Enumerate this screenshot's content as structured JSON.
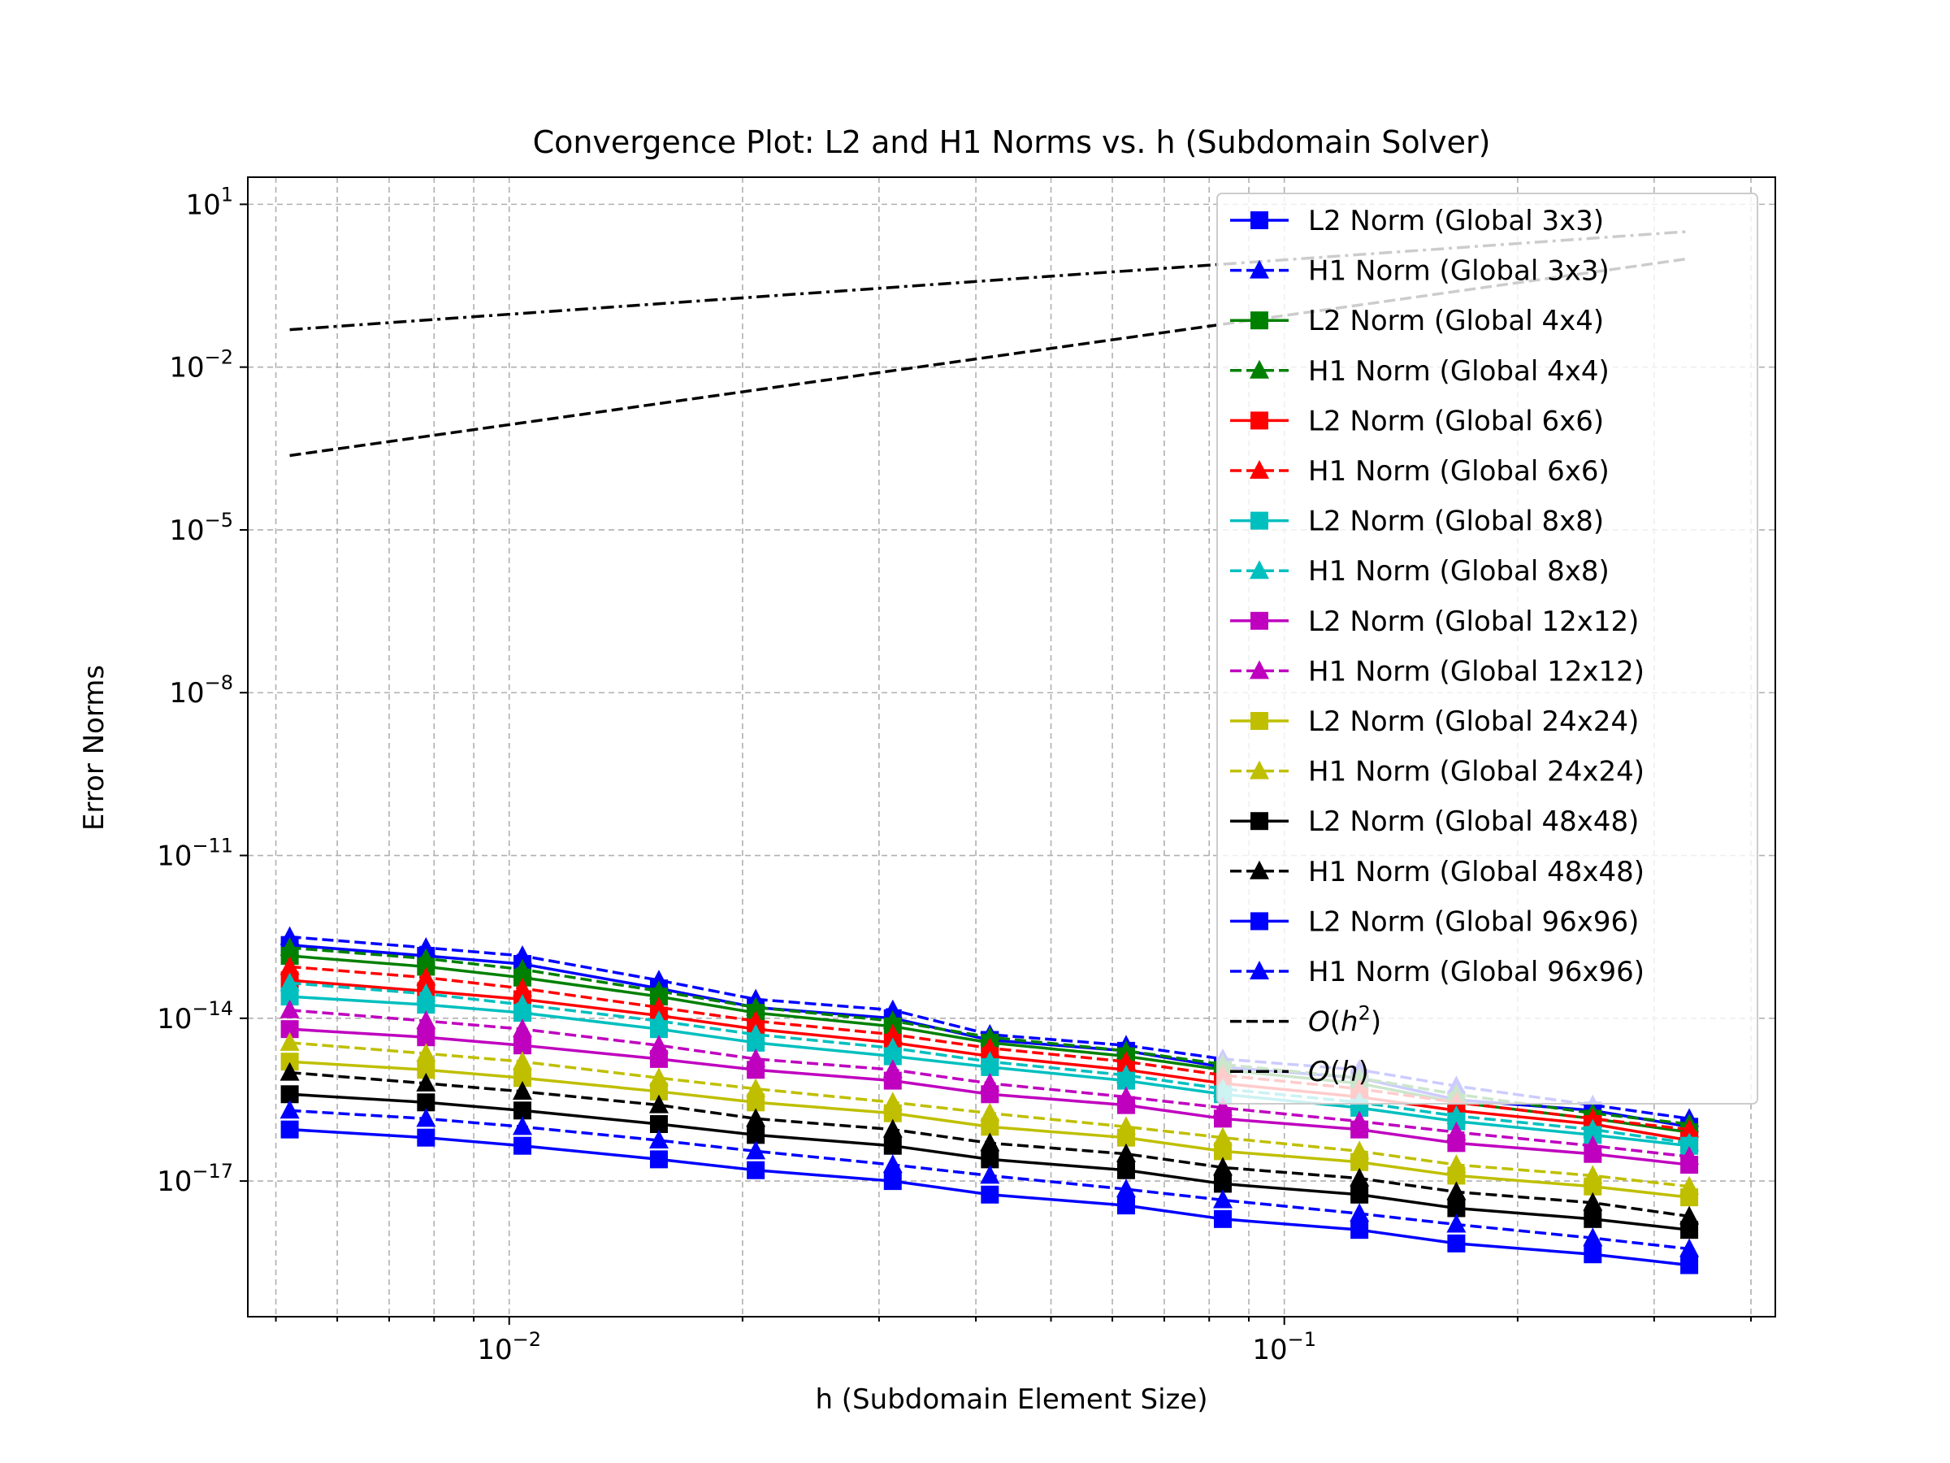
{
  "chart_data": {
    "type": "line",
    "title": "Convergence Plot: L2 and H1 Norms vs. h (Subdomain Solver)",
    "xlabel": "h (Subdomain Element Size)",
    "ylabel": "Error Norms",
    "x_scale": "log",
    "y_scale": "log",
    "xlim": [
      0.0046,
      0.43
    ],
    "ylim_exp": [
      -19.5,
      1.5
    ],
    "grid": "both-major-minor-dashed",
    "legend_position": "upper-right",
    "x_ticks": [
      {
        "value": 0.01,
        "base": "10",
        "exp": "−2"
      },
      {
        "value": 0.1,
        "base": "10",
        "exp": "−1"
      }
    ],
    "y_ticks": [
      {
        "exp_value": 1,
        "base": "10",
        "exp": "1"
      },
      {
        "exp_value": -2,
        "base": "10",
        "exp": "−2"
      },
      {
        "exp_value": -5,
        "base": "10",
        "exp": "−5"
      },
      {
        "exp_value": -8,
        "base": "10",
        "exp": "−8"
      },
      {
        "exp_value": -11,
        "base": "10",
        "exp": "−11"
      },
      {
        "exp_value": -14,
        "base": "10",
        "exp": "−14"
      },
      {
        "exp_value": -17,
        "base": "10",
        "exp": "−17"
      }
    ],
    "x": [
      0.00521,
      0.00781,
      0.0104,
      0.0156,
      0.0208,
      0.03125,
      0.0417,
      0.0625,
      0.0833,
      0.125,
      0.1667,
      0.25,
      0.333
    ],
    "reference_lines": [
      {
        "label": "O(h²)",
        "style": "dashed",
        "color": "#000000",
        "x": [
          0.00521,
          0.333
        ],
        "y_exp": [
          -3.63,
          0.0
        ]
      },
      {
        "label": "O(h)",
        "style": "dashdot",
        "color": "#000000",
        "x": [
          0.00521,
          0.333
        ],
        "y_exp": [
          -1.31,
          0.5
        ]
      }
    ],
    "series": [
      {
        "name": "L2 Norm (Global 3x3)",
        "color": "#0000ff",
        "line": "solid",
        "marker": "square",
        "y_exp": [
          -12.65,
          -12.85,
          -13.0,
          -13.45,
          -13.8,
          -14.0,
          -14.4,
          -14.6,
          -14.9,
          -15.1,
          -15.5,
          -15.7,
          -16.0
        ]
      },
      {
        "name": "H1 Norm (Global 3x3)",
        "color": "#0000ff",
        "line": "dashed",
        "marker": "triangle",
        "y_exp": [
          -12.5,
          -12.7,
          -12.85,
          -13.3,
          -13.65,
          -13.85,
          -14.3,
          -14.5,
          -14.75,
          -14.95,
          -15.25,
          -15.6,
          -15.85
        ]
      },
      {
        "name": "L2 Norm (Global 4x4)",
        "color": "#008000",
        "line": "solid",
        "marker": "square",
        "y_exp": [
          -12.85,
          -13.05,
          -13.25,
          -13.6,
          -13.9,
          -14.15,
          -14.45,
          -14.7,
          -14.95,
          -15.2,
          -15.55,
          -15.85,
          -16.1
        ]
      },
      {
        "name": "H1 Norm (Global 4x4)",
        "color": "#008000",
        "line": "dashed",
        "marker": "triangle",
        "y_exp": [
          -12.7,
          -12.9,
          -13.1,
          -13.5,
          -13.8,
          -14.05,
          -14.35,
          -14.6,
          -14.85,
          -15.1,
          -15.4,
          -15.75,
          -15.95
        ]
      },
      {
        "name": "L2 Norm (Global 6x6)",
        "color": "#ff0000",
        "line": "solid",
        "marker": "square",
        "y_exp": [
          -13.3,
          -13.5,
          -13.65,
          -13.95,
          -14.2,
          -14.45,
          -14.7,
          -14.95,
          -15.2,
          -15.45,
          -15.7,
          -15.95,
          -16.25
        ]
      },
      {
        "name": "H1 Norm (Global 6x6)",
        "color": "#ff0000",
        "line": "dashed",
        "marker": "triangle",
        "y_exp": [
          -13.05,
          -13.25,
          -13.45,
          -13.8,
          -14.05,
          -14.3,
          -14.55,
          -14.8,
          -15.05,
          -15.3,
          -15.55,
          -15.85,
          -16.05
        ]
      },
      {
        "name": "L2 Norm (Global 8x8)",
        "color": "#00bfbf",
        "line": "solid",
        "marker": "square",
        "y_exp": [
          -13.6,
          -13.75,
          -13.9,
          -14.2,
          -14.45,
          -14.7,
          -14.9,
          -15.15,
          -15.4,
          -15.65,
          -15.9,
          -16.15,
          -16.35
        ]
      },
      {
        "name": "H1 Norm (Global 8x8)",
        "color": "#00bfbf",
        "line": "dashed",
        "marker": "triangle",
        "y_exp": [
          -13.35,
          -13.55,
          -13.75,
          -14.05,
          -14.3,
          -14.55,
          -14.8,
          -15.05,
          -15.3,
          -15.55,
          -15.8,
          -16.05,
          -16.3
        ]
      },
      {
        "name": "L2 Norm (Global 12x12)",
        "color": "#bf00bf",
        "line": "solid",
        "marker": "square",
        "y_exp": [
          -14.2,
          -14.35,
          -14.5,
          -14.75,
          -14.95,
          -15.15,
          -15.4,
          -15.6,
          -15.85,
          -16.05,
          -16.3,
          -16.5,
          -16.7
        ]
      },
      {
        "name": "H1 Norm (Global 12x12)",
        "color": "#bf00bf",
        "line": "dashed",
        "marker": "triangle",
        "y_exp": [
          -13.85,
          -14.05,
          -14.2,
          -14.5,
          -14.75,
          -14.95,
          -15.2,
          -15.45,
          -15.65,
          -15.9,
          -16.1,
          -16.35,
          -16.55
        ]
      },
      {
        "name": "L2 Norm (Global 24x24)",
        "color": "#bfbf00",
        "line": "solid",
        "marker": "square",
        "y_exp": [
          -14.8,
          -14.95,
          -15.1,
          -15.35,
          -15.55,
          -15.75,
          -16.0,
          -16.2,
          -16.45,
          -16.65,
          -16.9,
          -17.1,
          -17.3
        ]
      },
      {
        "name": "H1 Norm (Global 24x24)",
        "color": "#bfbf00",
        "line": "dashed",
        "marker": "triangle",
        "y_exp": [
          -14.45,
          -14.65,
          -14.8,
          -15.1,
          -15.3,
          -15.55,
          -15.75,
          -16.0,
          -16.2,
          -16.45,
          -16.7,
          -16.9,
          -17.1
        ]
      },
      {
        "name": "L2 Norm (Global 48x48)",
        "color": "#000000",
        "line": "solid",
        "marker": "square",
        "y_exp": [
          -15.4,
          -15.55,
          -15.7,
          -15.95,
          -16.15,
          -16.35,
          -16.6,
          -16.8,
          -17.05,
          -17.25,
          -17.5,
          -17.7,
          -17.9
        ]
      },
      {
        "name": "H1 Norm (Global 48x48)",
        "color": "#000000",
        "line": "dashed",
        "marker": "triangle",
        "y_exp": [
          -15.0,
          -15.2,
          -15.35,
          -15.6,
          -15.85,
          -16.05,
          -16.3,
          -16.5,
          -16.75,
          -16.95,
          -17.2,
          -17.4,
          -17.65
        ]
      },
      {
        "name": "L2 Norm (Global 96x96)",
        "color": "#0000ff",
        "line": "solid",
        "marker": "square",
        "y_exp": [
          -16.05,
          -16.2,
          -16.35,
          -16.6,
          -16.8,
          -17.0,
          -17.25,
          -17.45,
          -17.7,
          -17.9,
          -18.15,
          -18.35,
          -18.55
        ]
      },
      {
        "name": "H1 Norm (Global 96x96)",
        "color": "#0000ff",
        "line": "dashed",
        "marker": "triangle",
        "y_exp": [
          -15.7,
          -15.85,
          -16.0,
          -16.25,
          -16.45,
          -16.7,
          -16.9,
          -17.15,
          -17.35,
          -17.6,
          -17.8,
          -18.05,
          -18.25
        ]
      }
    ],
    "legend": [
      {
        "label": "L2 Norm (Global 3x3)",
        "color": "#0000ff",
        "line": "solid",
        "marker": "square"
      },
      {
        "label": "H1 Norm (Global 3x3)",
        "color": "#0000ff",
        "line": "dashed",
        "marker": "triangle"
      },
      {
        "label": "L2 Norm (Global 4x4)",
        "color": "#008000",
        "line": "solid",
        "marker": "square"
      },
      {
        "label": "H1 Norm (Global 4x4)",
        "color": "#008000",
        "line": "dashed",
        "marker": "triangle"
      },
      {
        "label": "L2 Norm (Global 6x6)",
        "color": "#ff0000",
        "line": "solid",
        "marker": "square"
      },
      {
        "label": "H1 Norm (Global 6x6)",
        "color": "#ff0000",
        "line": "dashed",
        "marker": "triangle"
      },
      {
        "label": "L2 Norm (Global 8x8)",
        "color": "#00bfbf",
        "line": "solid",
        "marker": "square"
      },
      {
        "label": "H1 Norm (Global 8x8)",
        "color": "#00bfbf",
        "line": "dashed",
        "marker": "triangle"
      },
      {
        "label": "L2 Norm (Global 12x12)",
        "color": "#bf00bf",
        "line": "solid",
        "marker": "square"
      },
      {
        "label": "H1 Norm (Global 12x12)",
        "color": "#bf00bf",
        "line": "dashed",
        "marker": "triangle"
      },
      {
        "label": "L2 Norm (Global 24x24)",
        "color": "#bfbf00",
        "line": "solid",
        "marker": "square"
      },
      {
        "label": "H1 Norm (Global 24x24)",
        "color": "#bfbf00",
        "line": "dashed",
        "marker": "triangle"
      },
      {
        "label": "L2 Norm (Global 48x48)",
        "color": "#000000",
        "line": "solid",
        "marker": "square"
      },
      {
        "label": "H1 Norm (Global 48x48)",
        "color": "#000000",
        "line": "dashed",
        "marker": "triangle"
      },
      {
        "label": "L2 Norm (Global 96x96)",
        "color": "#0000ff",
        "line": "solid",
        "marker": "square"
      },
      {
        "label": "H1 Norm (Global 96x96)",
        "color": "#0000ff",
        "line": "dashed",
        "marker": "triangle"
      },
      {
        "label_base": "O",
        "label_var": "h",
        "label_sup": "2",
        "color": "#000000",
        "line": "dashed",
        "marker": "none"
      },
      {
        "label_base": "O",
        "label_var": "h",
        "label_sup": "",
        "color": "#000000",
        "line": "dashdot",
        "marker": "none"
      }
    ]
  }
}
